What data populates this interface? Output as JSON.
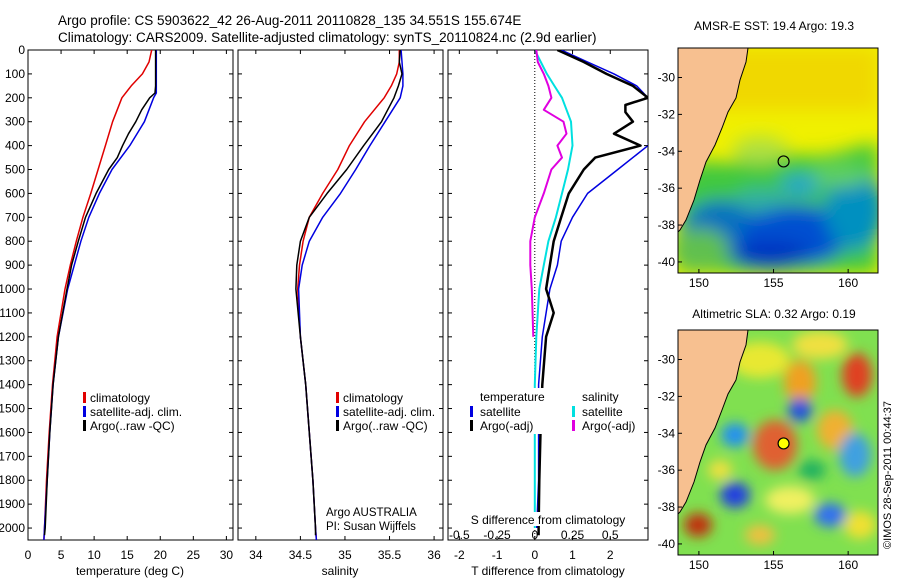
{
  "header": {
    "line1": "Argo profile: CS 5903622_42 26-Aug-2011 20110828_135 34.551S 155.674E",
    "line2": "Climatology: CARS2009. Satellite-adjusted climatology: synTS_20110824.nc (2.9d earlier)"
  },
  "credits": {
    "program": "Argo AUSTRALIA",
    "pi": "PI: Susan Wijffels",
    "watermark": "©IMOS 28-Sep-2011 00:44:37"
  },
  "colors": {
    "climatology": "#e00000",
    "satellite": "#0000e0",
    "argo": "#000000",
    "temp_diff_argo": "#000000",
    "sal_diff_sat": "#00e0e0",
    "sal_diff_argo": "#e000e0",
    "land": "#f7c090"
  },
  "chart_data": [
    {
      "type": "line",
      "name": "temperature-profile",
      "xlabel": "temperature (deg C)",
      "ylabel": "",
      "xlim": [
        0,
        31
      ],
      "ylim": [
        2050,
        0
      ],
      "xticks": [
        "0",
        "5",
        "10",
        "15",
        "20",
        "25",
        "30"
      ],
      "xtick_values": [
        0,
        5,
        10,
        15,
        20,
        25,
        30
      ],
      "yticks": [
        "0",
        "100",
        "200",
        "300",
        "400",
        "500",
        "600",
        "700",
        "800",
        "900",
        "1000",
        "1100",
        "1200",
        "1300",
        "1400",
        "1500",
        "1600",
        "1700",
        "1800",
        "1900",
        "2000"
      ],
      "ytick_values": [
        0,
        100,
        200,
        300,
        400,
        500,
        600,
        700,
        800,
        900,
        1000,
        1100,
        1200,
        1300,
        1400,
        1500,
        1600,
        1700,
        1800,
        1900,
        2000
      ],
      "legend": [
        "climatology",
        "satellite-adj. clim.",
        "Argo(..raw -QC)"
      ],
      "series": [
        {
          "name": "climatology",
          "color": "#e00000",
          "width": 1.5,
          "depth": [
            0,
            50,
            100,
            150,
            200,
            300,
            400,
            500,
            600,
            700,
            800,
            900,
            1000,
            1200,
            1400,
            1600,
            1800,
            2000,
            2050
          ],
          "values": [
            18.7,
            18.3,
            17.3,
            15.6,
            14.2,
            12.8,
            11.7,
            10.6,
            9.5,
            8.3,
            7.3,
            6.4,
            5.6,
            4.4,
            3.7,
            3.2,
            2.8,
            2.5,
            2.4
          ]
        },
        {
          "name": "satellite-adj. clim.",
          "color": "#0000e0",
          "width": 1.5,
          "depth": [
            0,
            50,
            100,
            150,
            180,
            200,
            300,
            400,
            500,
            600,
            700,
            800,
            900,
            1000,
            1200,
            1400,
            1600,
            1800,
            2000,
            2050
          ],
          "values": [
            19.4,
            19.4,
            19.4,
            19.4,
            19.4,
            19.0,
            17.6,
            15.4,
            12.7,
            10.8,
            9.2,
            8.0,
            7.0,
            6.0,
            4.6,
            3.8,
            3.3,
            2.9,
            2.5,
            2.4
          ]
        },
        {
          "name": "Argo(..raw -QC)",
          "color": "#000000",
          "width": 1.5,
          "depth": [
            0,
            50,
            100,
            150,
            180,
            200,
            250,
            300,
            350,
            400,
            450,
            500,
            600,
            700,
            800,
            900,
            1000,
            1200,
            1400,
            1600,
            1800,
            2000,
            2030
          ],
          "values": [
            19.3,
            19.3,
            19.3,
            19.3,
            19.2,
            18.4,
            17.2,
            16.3,
            15.2,
            14.3,
            13.5,
            12.2,
            10.3,
            8.7,
            7.6,
            6.6,
            5.9,
            4.6,
            3.8,
            3.3,
            2.9,
            2.6,
            2.5
          ]
        }
      ]
    },
    {
      "type": "line",
      "name": "salinity-profile",
      "xlabel": "salinity",
      "xlim": [
        33.8,
        36.1
      ],
      "ylim": [
        2050,
        0
      ],
      "xticks": [
        "34",
        "34.5",
        "35",
        "35.5",
        "36"
      ],
      "xtick_values": [
        34,
        34.5,
        35,
        35.5,
        36
      ],
      "legend": [
        "climatology",
        "satellite-adj. clim.",
        "Argo(..raw -QC)"
      ],
      "series": [
        {
          "name": "climatology",
          "color": "#e00000",
          "width": 1.5,
          "depth": [
            0,
            50,
            100,
            150,
            200,
            300,
            400,
            500,
            600,
            700,
            800,
            900,
            1000,
            1200,
            1400,
            1600,
            1800,
            2000,
            2050
          ],
          "values": [
            35.61,
            35.61,
            35.58,
            35.52,
            35.44,
            35.22,
            35.05,
            34.92,
            34.75,
            34.6,
            34.53,
            34.49,
            34.47,
            34.5,
            34.56,
            34.6,
            34.64,
            34.67,
            34.68
          ]
        },
        {
          "name": "satellite-adj. clim.",
          "color": "#0000e0",
          "width": 1.5,
          "depth": [
            0,
            50,
            100,
            150,
            200,
            300,
            400,
            500,
            600,
            700,
            800,
            900,
            1000,
            1200,
            1400,
            1600,
            1800,
            2000,
            2050
          ],
          "values": [
            35.63,
            35.64,
            35.65,
            35.65,
            35.62,
            35.45,
            35.28,
            35.12,
            34.95,
            34.75,
            34.6,
            34.52,
            34.48,
            34.5,
            34.56,
            34.6,
            34.64,
            34.67,
            34.68
          ]
        },
        {
          "name": "Argo(..raw -QC)",
          "color": "#000000",
          "width": 1.5,
          "depth": [
            0,
            50,
            100,
            150,
            200,
            250,
            300,
            350,
            400,
            500,
            600,
            700,
            800,
            900,
            1000,
            1200,
            1400,
            1600,
            1800,
            2000,
            2030
          ],
          "values": [
            35.62,
            35.61,
            35.64,
            35.6,
            35.55,
            35.48,
            35.41,
            35.31,
            35.21,
            35.02,
            34.8,
            34.6,
            34.5,
            34.46,
            34.45,
            34.5,
            34.56,
            34.6,
            34.64,
            34.67,
            34.67
          ]
        }
      ]
    },
    {
      "type": "line",
      "name": "difference-profile",
      "xlabel": "T difference from climatology",
      "xlabel_top": "S difference from climatology",
      "xlim": [
        -2.3,
        3.0
      ],
      "ylim": [
        2050,
        0
      ],
      "xticks": [
        "-2",
        "-1",
        "0",
        "1",
        "2"
      ],
      "xtick_values": [
        -2,
        -1,
        0,
        1,
        2
      ],
      "sticks": [
        "-0.5",
        "-0.25",
        "0",
        "0.25",
        "0.5"
      ],
      "stick_values": [
        -0.5,
        -0.25,
        0,
        0.25,
        0.5
      ],
      "s_scale": 4,
      "legend_temperature": "temperature",
      "legend_salinity": "salinity",
      "legend": [
        "satellite",
        "Argo(-adj)",
        "satellite",
        "Argo(-adj)"
      ],
      "series": [
        {
          "name": "T satellite",
          "color": "#0000e0",
          "width": 1.5,
          "kind": "T",
          "depth": [
            0,
            50,
            100,
            150,
            200,
            250,
            300,
            400,
            500,
            600,
            700,
            800,
            900,
            1000,
            1200,
            1400,
            1600,
            1800,
            2000
          ],
          "values": [
            0.7,
            1.4,
            2.1,
            2.7,
            3.0,
            3.2,
            3.2,
            3.0,
            2.2,
            1.4,
            1.0,
            0.7,
            0.6,
            0.4,
            0.2,
            0.1,
            0.1,
            0.1,
            0.05
          ]
        },
        {
          "name": "T Argo(-adj)",
          "color": "#000000",
          "width": 2.5,
          "kind": "T",
          "depth": [
            0,
            50,
            100,
            150,
            200,
            230,
            260,
            300,
            350,
            400,
            450,
            500,
            600,
            700,
            800,
            900,
            1000,
            1100,
            1200,
            1400,
            1600,
            1800,
            2000,
            2030
          ],
          "values": [
            0.6,
            1.3,
            1.9,
            2.6,
            3.0,
            2.4,
            2.4,
            2.6,
            2.1,
            2.8,
            1.6,
            1.3,
            0.9,
            0.7,
            0.5,
            0.4,
            0.3,
            0.5,
            0.3,
            0.2,
            0.15,
            0.12,
            0.1,
            0.1
          ]
        },
        {
          "name": "S satellite",
          "color": "#00e0e0",
          "width": 2,
          "kind": "S",
          "depth": [
            0,
            50,
            100,
            150,
            200,
            300,
            400,
            500,
            600,
            700,
            800,
            900,
            1000,
            1200,
            1400,
            1600,
            1800,
            2000
          ],
          "values": [
            0.0,
            0.04,
            0.08,
            0.13,
            0.18,
            0.24,
            0.25,
            0.22,
            0.18,
            0.14,
            0.09,
            0.06,
            0.03,
            0.01,
            0.0,
            0.0,
            0.0,
            0.0
          ]
        },
        {
          "name": "S Argo(-adj)",
          "color": "#e000e0",
          "width": 2,
          "kind": "S",
          "depth": [
            0,
            50,
            100,
            150,
            200,
            250,
            300,
            350,
            400,
            450,
            500,
            600,
            700,
            800,
            900,
            1000,
            1200
          ],
          "values": [
            0.01,
            0.02,
            0.06,
            0.09,
            0.11,
            0.06,
            0.19,
            0.21,
            0.15,
            0.18,
            0.11,
            0.06,
            0.0,
            -0.03,
            -0.03,
            -0.02,
            -0.01
          ]
        }
      ]
    },
    {
      "type": "heatmap",
      "name": "sst-map",
      "title": "AMSR-E SST: 19.4  Argo: 19.3",
      "xticks": [
        "150",
        "155",
        "160"
      ],
      "xtick_values": [
        150,
        155,
        160
      ],
      "yticks": [
        "-30",
        "-32",
        "-34",
        "-36",
        "-38",
        "-40"
      ],
      "ytick_values": [
        -30,
        -32,
        -34,
        -36,
        -38,
        -40
      ],
      "xlim": [
        148.6,
        162
      ],
      "ylim": [
        -40.6,
        -28.4
      ],
      "argo_position": [
        155.674,
        -34.551
      ]
    },
    {
      "type": "heatmap",
      "name": "sla-map",
      "title": "Altimetric SLA: 0.32  Argo: 0.19",
      "xticks": [
        "150",
        "155",
        "160"
      ],
      "xtick_values": [
        150,
        155,
        160
      ],
      "yticks": [
        "-30",
        "-32",
        "-34",
        "-36",
        "-38",
        "-40"
      ],
      "ytick_values": [
        -30,
        -32,
        -34,
        -36,
        -38,
        -40
      ],
      "xlim": [
        148.6,
        162
      ],
      "ylim": [
        -40.6,
        -28.4
      ],
      "argo_position": [
        155.674,
        -34.551
      ]
    }
  ]
}
